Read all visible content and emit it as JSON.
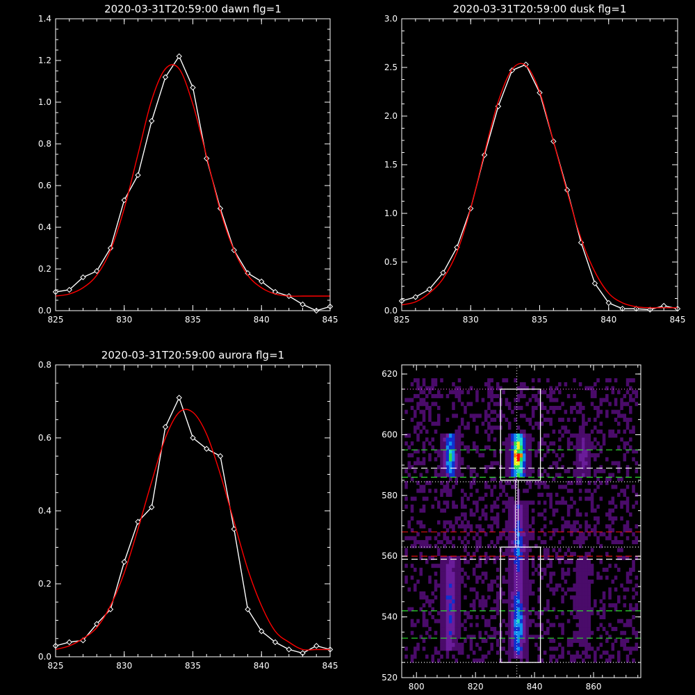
{
  "chart_data": [
    {
      "type": "line",
      "title": "2020-03-31T20:59:00 dawn flg=1",
      "xlim": [
        825,
        845
      ],
      "ylim": [
        0,
        1.4
      ],
      "xticks": [
        825,
        830,
        835,
        840,
        845
      ],
      "yticks": [
        0.0,
        0.2,
        0.4,
        0.6,
        0.8,
        1.0,
        1.2,
        1.4
      ],
      "ytick_labels": [
        "0.0",
        "0.2",
        "0.4",
        "0.6",
        "0.8",
        "1.0",
        "1.2",
        "1.4"
      ],
      "series": [
        {
          "role": "data",
          "color": "#ffffff",
          "marker": "diamond",
          "x": [
            825,
            826,
            827,
            828,
            829,
            830,
            831,
            832,
            833,
            834,
            835,
            836,
            837,
            838,
            839,
            840,
            841,
            842,
            843,
            844,
            845
          ],
          "y": [
            0.09,
            0.1,
            0.16,
            0.19,
            0.3,
            0.53,
            0.65,
            0.91,
            1.12,
            1.22,
            1.07,
            0.73,
            0.49,
            0.29,
            0.18,
            0.14,
            0.09,
            0.07,
            0.03,
            0.0,
            0.02
          ]
        },
        {
          "role": "fit",
          "color": "#ff0000",
          "x": [
            825,
            826,
            827,
            828,
            829,
            830,
            831,
            832,
            833,
            834,
            835,
            836,
            837,
            838,
            839,
            840,
            841,
            842,
            843,
            844,
            845
          ],
          "y": [
            0.07,
            0.08,
            0.11,
            0.17,
            0.29,
            0.49,
            0.75,
            1.01,
            1.16,
            1.16,
            0.99,
            0.74,
            0.48,
            0.29,
            0.17,
            0.11,
            0.08,
            0.07,
            0.07,
            0.07,
            0.07
          ]
        }
      ]
    },
    {
      "type": "line",
      "title": "2020-03-31T20:59:00 dusk flg=1",
      "xlim": [
        825,
        845
      ],
      "ylim": [
        0,
        3.0
      ],
      "xticks": [
        825,
        830,
        835,
        840,
        845
      ],
      "yticks": [
        0.0,
        0.5,
        1.0,
        1.5,
        2.0,
        2.5,
        3.0
      ],
      "ytick_labels": [
        "0.0",
        "0.5",
        "1.0",
        "1.5",
        "2.0",
        "2.5",
        "3.0"
      ],
      "series": [
        {
          "role": "data",
          "color": "#ffffff",
          "marker": "diamond",
          "x": [
            825,
            826,
            827,
            828,
            829,
            830,
            831,
            832,
            833,
            834,
            835,
            836,
            837,
            838,
            839,
            840,
            841,
            842,
            843,
            844,
            845
          ],
          "y": [
            0.1,
            0.14,
            0.22,
            0.39,
            0.65,
            1.05,
            1.6,
            2.1,
            2.47,
            2.53,
            2.24,
            1.74,
            1.24,
            0.7,
            0.28,
            0.08,
            0.02,
            0.02,
            0.01,
            0.05,
            0.02
          ]
        },
        {
          "role": "fit",
          "color": "#ff0000",
          "x": [
            825,
            826,
            827,
            828,
            829,
            830,
            831,
            832,
            833,
            834,
            835,
            836,
            837,
            838,
            839,
            840,
            841,
            842,
            843,
            844,
            845
          ],
          "y": [
            0.06,
            0.09,
            0.18,
            0.33,
            0.6,
            1.05,
            1.62,
            2.15,
            2.48,
            2.52,
            2.25,
            1.74,
            1.22,
            0.74,
            0.4,
            0.18,
            0.08,
            0.04,
            0.03,
            0.03,
            0.03
          ]
        }
      ]
    },
    {
      "type": "line",
      "title": "2020-03-31T20:59:00 aurora flg=1",
      "xlim": [
        825,
        845
      ],
      "ylim": [
        0,
        0.8
      ],
      "xticks": [
        825,
        830,
        835,
        840,
        845
      ],
      "yticks": [
        0.0,
        0.2,
        0.4,
        0.6,
        0.8
      ],
      "ytick_labels": [
        "0.0",
        "0.2",
        "0.4",
        "0.6",
        "0.8"
      ],
      "series": [
        {
          "role": "data",
          "color": "#ffffff",
          "marker": "diamond",
          "x": [
            825,
            826,
            827,
            828,
            829,
            830,
            831,
            832,
            833,
            834,
            835,
            836,
            837,
            838,
            839,
            840,
            841,
            842,
            843,
            844,
            845
          ],
          "y": [
            0.03,
            0.04,
            0.045,
            0.09,
            0.13,
            0.26,
            0.37,
            0.41,
            0.63,
            0.71,
            0.6,
            0.57,
            0.55,
            0.35,
            0.13,
            0.07,
            0.04,
            0.02,
            0.01,
            0.03,
            0.02
          ]
        },
        {
          "role": "fit",
          "color": "#ff0000",
          "x": [
            825,
            826,
            827,
            828,
            829,
            830,
            831,
            832,
            833,
            834,
            835,
            836,
            837,
            838,
            839,
            840,
            841,
            842,
            843,
            844,
            845
          ],
          "y": [
            0.02,
            0.03,
            0.05,
            0.08,
            0.14,
            0.23,
            0.35,
            0.48,
            0.6,
            0.67,
            0.67,
            0.61,
            0.5,
            0.37,
            0.24,
            0.14,
            0.07,
            0.04,
            0.02,
            0.02,
            0.02
          ]
        }
      ]
    },
    {
      "type": "heatmap",
      "title": "",
      "xlim": [
        795,
        876
      ],
      "ylim": [
        520,
        623
      ],
      "xticks": [
        800,
        820,
        840,
        860
      ],
      "yticks": [
        520,
        540,
        560,
        580,
        600,
        620
      ],
      "colormap": [
        "#000000",
        "#4a0b6a",
        "#6a1c9a",
        "#1030d0",
        "#1090f0",
        "#20d8c8",
        "#30e050",
        "#f0f020",
        "#ff8000",
        "#ff0000"
      ],
      "intensity_bands": [
        {
          "x_center": 834,
          "x_halfwidth": 2.2,
          "peak": 1.0,
          "y_ranges": [
            [
              526,
              548,
              0.55
            ],
            [
              548,
              578,
              0.4
            ],
            [
              585,
              600,
              1.0
            ]
          ]
        },
        {
          "x_center": 811,
          "x_halfwidth": 2.0,
          "peak": 0.6,
          "y_ranges": [
            [
              528,
              560,
              0.35
            ],
            [
              585,
              600,
              0.6
            ]
          ]
        },
        {
          "x_center": 856,
          "x_halfwidth": 1.6,
          "peak": 0.25,
          "y_ranges": [
            [
              530,
              560,
              0.15
            ],
            [
              585,
              600,
              0.28
            ]
          ]
        }
      ],
      "boxes": [
        {
          "x0": 828.5,
          "x1": 842,
          "y0": 585,
          "y1": 615,
          "color": "#ffffff"
        },
        {
          "x0": 828.5,
          "x1": 842,
          "y0": 525,
          "y1": 563,
          "color": "#ffffff"
        }
      ],
      "column_line": {
        "x": 834,
        "y0": 563,
        "y1": 585,
        "color": "#ffffff"
      },
      "vertical_dotted": [
        {
          "x": 834,
          "color": "#ffffff"
        }
      ],
      "horizontal_lines": [
        {
          "y": 615,
          "color": "#ff66ff",
          "style": "dotted"
        },
        {
          "y": 595,
          "color": "#30e030",
          "style": "dashed"
        },
        {
          "y": 589,
          "color": "#ffffff",
          "style": "dashed"
        },
        {
          "y": 586,
          "color": "#30e030",
          "style": "dashed"
        },
        {
          "y": 584.5,
          "color": "#ffffff",
          "style": "dotted"
        },
        {
          "y": 568,
          "color": "#e01010",
          "style": "dashed"
        },
        {
          "y": 563,
          "color": "#ffffff",
          "style": "dotted"
        },
        {
          "y": 560,
          "color": "#e01010",
          "style": "dashed"
        },
        {
          "y": 559,
          "color": "#ffffff",
          "style": "dashed"
        },
        {
          "y": 542,
          "color": "#30e030",
          "style": "dashed"
        },
        {
          "y": 533,
          "color": "#30e030",
          "style": "dashed"
        },
        {
          "y": 525,
          "color": "#ffffff",
          "style": "dotted"
        }
      ]
    }
  ]
}
